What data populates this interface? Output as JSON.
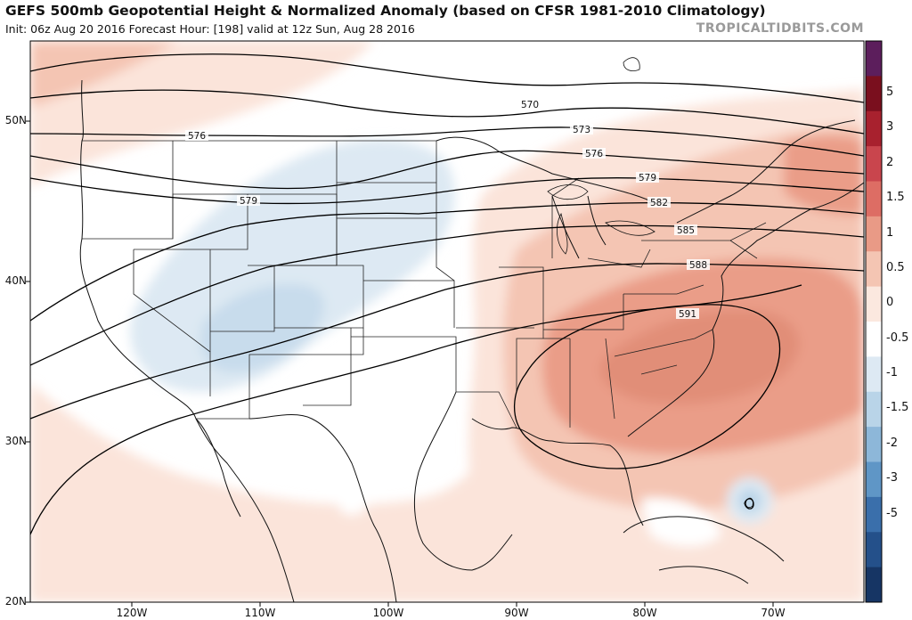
{
  "header": {
    "title": "GEFS 500mb Geopotential Height & Normalized Anomaly (based on CFSR 1981-2010 Climatology)",
    "subtitle": "Init: 06z Aug 20 2016   Forecast Hour: [198]   valid at 12z Sun, Aug 28 2016",
    "credit": "TROPICALTIDBITS.COM"
  },
  "axes": {
    "latitudes": [
      {
        "label": "50N",
        "value": 50
      },
      {
        "label": "40N",
        "value": 40
      },
      {
        "label": "30N",
        "value": 30
      },
      {
        "label": "20N",
        "value": 20
      }
    ],
    "longitudes": [
      {
        "label": "120W",
        "value": -120
      },
      {
        "label": "110W",
        "value": -110
      },
      {
        "label": "100W",
        "value": -100
      },
      {
        "label": "90W",
        "value": -90
      },
      {
        "label": "80W",
        "value": -80
      },
      {
        "label": "70W",
        "value": -70
      }
    ]
  },
  "contour_labels": [
    "570",
    "573",
    "576",
    "576",
    "579",
    "579",
    "582",
    "585",
    "588",
    "591"
  ],
  "colorbar": {
    "labels": [
      "5",
      "3",
      "2",
      "1.5",
      "1",
      "0.5",
      "0",
      "-0.5",
      "-1",
      "-1.5",
      "-2",
      "-3",
      "-5"
    ],
    "colors": [
      "#5c1e5c",
      "#7a0f1e",
      "#a8212e",
      "#c9454d",
      "#dd6d64",
      "#e99a86",
      "#f4c5b3",
      "#fbe8df",
      "#ffffff",
      "#dde9f3",
      "#b9d4e8",
      "#8db7d9",
      "#5f96c6",
      "#3a6fab",
      "#24508a",
      "#163564"
    ]
  }
}
